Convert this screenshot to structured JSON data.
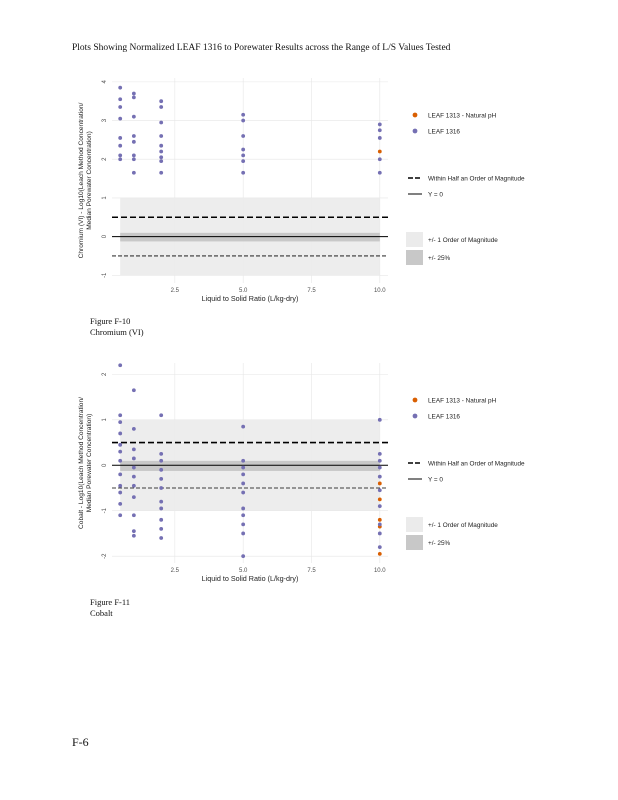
{
  "page": {
    "title": "Plots Showing Normalized LEAF 1316 to Porewater Results across the Range of L/S Values Tested",
    "page_number": "F-6"
  },
  "colors": {
    "leaf1313": "#d95f02",
    "leaf1316": "#7570b3",
    "band_order": "#ebebeb",
    "band_25": "#c8c8c8",
    "grid": "#e6e6e6",
    "axis_text": "#4d4d4d"
  },
  "figures": [
    {
      "caption_number": "Figure F-10",
      "caption_name": "Chromium (VI)",
      "ylabel_line1": "Chromium (VI) - Log10(Leach Method Concentration/",
      "ylabel_line2": "Median Porewater Concentration)",
      "xlabel": "Liquid to Solid Ratio (L/kg-dry)",
      "xticks": [
        "2.5",
        "5.0",
        "7.5",
        "10.0"
      ],
      "yticks": [
        "-1",
        "0",
        "1",
        "2",
        "3",
        "4"
      ],
      "legend": {
        "leaf1313": "LEAF 1313 - Natural pH",
        "leaf1316": "LEAF 1316",
        "half_order": "Within Half an Order of Magnitude",
        "y0": "Y = 0",
        "one_order": "+/- 1 Order of Magnitude",
        "pct25": "+/- 25%"
      }
    },
    {
      "caption_number": "Figure F-11",
      "caption_name": "Cobalt",
      "ylabel_line1": "Cobalt - Log10(Leach Method Concentration/",
      "ylabel_line2": "Median Porewater Concentration)",
      "xlabel": "Liquid to Solid Ratio (L/kg-dry)",
      "xticks": [
        "2.5",
        "5.0",
        "7.5",
        "10.0"
      ],
      "yticks": [
        "-2",
        "-1",
        "0",
        "1",
        "2"
      ],
      "legend": {
        "leaf1313": "LEAF 1313 - Natural pH",
        "leaf1316": "LEAF 1316",
        "half_order": "Within Half an Order of Magnitude",
        "y0": "Y = 0",
        "one_order": "+/- 1 Order of Magnitude",
        "pct25": "+/- 25%"
      }
    }
  ],
  "chart_data": [
    {
      "type": "scatter",
      "title": "Chromium (VI)",
      "xlabel": "Liquid to Solid Ratio (L/kg-dry)",
      "ylabel": "Chromium (VI) - Log10(Leach Method Concentration/Median Porewater Concentration)",
      "xlim": [
        0.2,
        10.3
      ],
      "ylim": [
        -1.2,
        4.1
      ],
      "xticks": [
        2.5,
        5.0,
        7.5,
        10.0
      ],
      "yticks": [
        -1,
        0,
        1,
        2,
        3,
        4
      ],
      "reference": {
        "one_order": [
          -1,
          1
        ],
        "half_order": [
          -0.5,
          0.5
        ],
        "pct25": [
          -0.125,
          0.097
        ],
        "y0": 0
      },
      "grid": true,
      "legend_position": "right",
      "series": [
        {
          "name": "LEAF 1313 - Natural pH",
          "color_key": "leaf1313",
          "points": [
            [
              10.0,
              2.2
            ]
          ]
        },
        {
          "name": "LEAF 1316",
          "color_key": "leaf1316",
          "points": [
            [
              0.5,
              3.85
            ],
            [
              0.5,
              3.55
            ],
            [
              0.5,
              3.35
            ],
            [
              0.5,
              3.05
            ],
            [
              0.5,
              2.55
            ],
            [
              0.5,
              2.35
            ],
            [
              0.5,
              2.1
            ],
            [
              0.5,
              2.0
            ],
            [
              1.0,
              3.7
            ],
            [
              1.0,
              3.6
            ],
            [
              1.0,
              3.1
            ],
            [
              1.0,
              2.6
            ],
            [
              1.0,
              2.45
            ],
            [
              1.0,
              2.1
            ],
            [
              1.0,
              2.0
            ],
            [
              1.0,
              1.65
            ],
            [
              2.0,
              3.5
            ],
            [
              2.0,
              3.35
            ],
            [
              2.0,
              2.95
            ],
            [
              2.0,
              2.6
            ],
            [
              2.0,
              2.35
            ],
            [
              2.0,
              2.2
            ],
            [
              2.0,
              2.05
            ],
            [
              2.0,
              1.95
            ],
            [
              2.0,
              1.65
            ],
            [
              5.0,
              3.15
            ],
            [
              5.0,
              3.0
            ],
            [
              5.0,
              2.6
            ],
            [
              5.0,
              2.25
            ],
            [
              5.0,
              2.1
            ],
            [
              5.0,
              1.95
            ],
            [
              5.0,
              1.65
            ],
            [
              10.0,
              2.9
            ],
            [
              10.0,
              2.75
            ],
            [
              10.0,
              2.55
            ],
            [
              10.0,
              2.0
            ],
            [
              10.0,
              1.65
            ]
          ]
        }
      ]
    },
    {
      "type": "scatter",
      "title": "Cobalt",
      "xlabel": "Liquid to Solid Ratio (L/kg-dry)",
      "ylabel": "Cobalt - Log10(Leach Method Concentration/Median Porewater Concentration)",
      "xlim": [
        0.2,
        10.3
      ],
      "ylim": [
        -2.15,
        2.25
      ],
      "xticks": [
        2.5,
        5.0,
        7.5,
        10.0
      ],
      "yticks": [
        -2,
        -1,
        0,
        1,
        2
      ],
      "reference": {
        "one_order": [
          -1,
          1
        ],
        "half_order": [
          -0.5,
          0.5
        ],
        "pct25": [
          -0.125,
          0.097
        ],
        "y0": 0
      },
      "grid": true,
      "legend_position": "right",
      "series": [
        {
          "name": "LEAF 1313 - Natural pH",
          "color_key": "leaf1313",
          "points": [
            [
              10.0,
              -0.4
            ],
            [
              10.0,
              -0.75
            ],
            [
              10.0,
              -1.2
            ],
            [
              10.0,
              -1.35
            ],
            [
              10.0,
              -1.95
            ]
          ]
        },
        {
          "name": "LEAF 1316",
          "color_key": "leaf1316",
          "points": [
            [
              0.5,
              2.2
            ],
            [
              0.5,
              1.1
            ],
            [
              0.5,
              0.95
            ],
            [
              0.5,
              0.7
            ],
            [
              0.5,
              0.45
            ],
            [
              0.5,
              0.3
            ],
            [
              0.5,
              0.1
            ],
            [
              0.5,
              -0.2
            ],
            [
              0.5,
              -0.45
            ],
            [
              0.5,
              -0.6
            ],
            [
              0.5,
              -0.85
            ],
            [
              0.5,
              -1.1
            ],
            [
              1.0,
              1.65
            ],
            [
              1.0,
              0.8
            ],
            [
              1.0,
              0.35
            ],
            [
              1.0,
              0.15
            ],
            [
              1.0,
              -0.05
            ],
            [
              1.0,
              -0.25
            ],
            [
              1.0,
              -0.45
            ],
            [
              1.0,
              -0.7
            ],
            [
              1.0,
              -1.1
            ],
            [
              1.0,
              -1.45
            ],
            [
              1.0,
              -1.55
            ],
            [
              2.0,
              1.1
            ],
            [
              2.0,
              0.25
            ],
            [
              2.0,
              0.1
            ],
            [
              2.0,
              -0.1
            ],
            [
              2.0,
              -0.3
            ],
            [
              2.0,
              -0.5
            ],
            [
              2.0,
              -0.8
            ],
            [
              2.0,
              -0.95
            ],
            [
              2.0,
              -1.2
            ],
            [
              2.0,
              -1.4
            ],
            [
              2.0,
              -1.6
            ],
            [
              5.0,
              0.85
            ],
            [
              5.0,
              0.1
            ],
            [
              5.0,
              -0.05
            ],
            [
              5.0,
              -0.2
            ],
            [
              5.0,
              -0.4
            ],
            [
              5.0,
              -0.6
            ],
            [
              5.0,
              -0.95
            ],
            [
              5.0,
              -1.1
            ],
            [
              5.0,
              -1.3
            ],
            [
              5.0,
              -1.5
            ],
            [
              5.0,
              -2.0
            ],
            [
              10.0,
              1.0
            ],
            [
              10.0,
              0.25
            ],
            [
              10.0,
              0.1
            ],
            [
              10.0,
              -0.05
            ],
            [
              10.0,
              -0.25
            ],
            [
              10.0,
              -0.55
            ],
            [
              10.0,
              -0.9
            ],
            [
              10.0,
              -1.3
            ],
            [
              10.0,
              -1.5
            ],
            [
              10.0,
              -1.8
            ]
          ]
        }
      ]
    }
  ]
}
